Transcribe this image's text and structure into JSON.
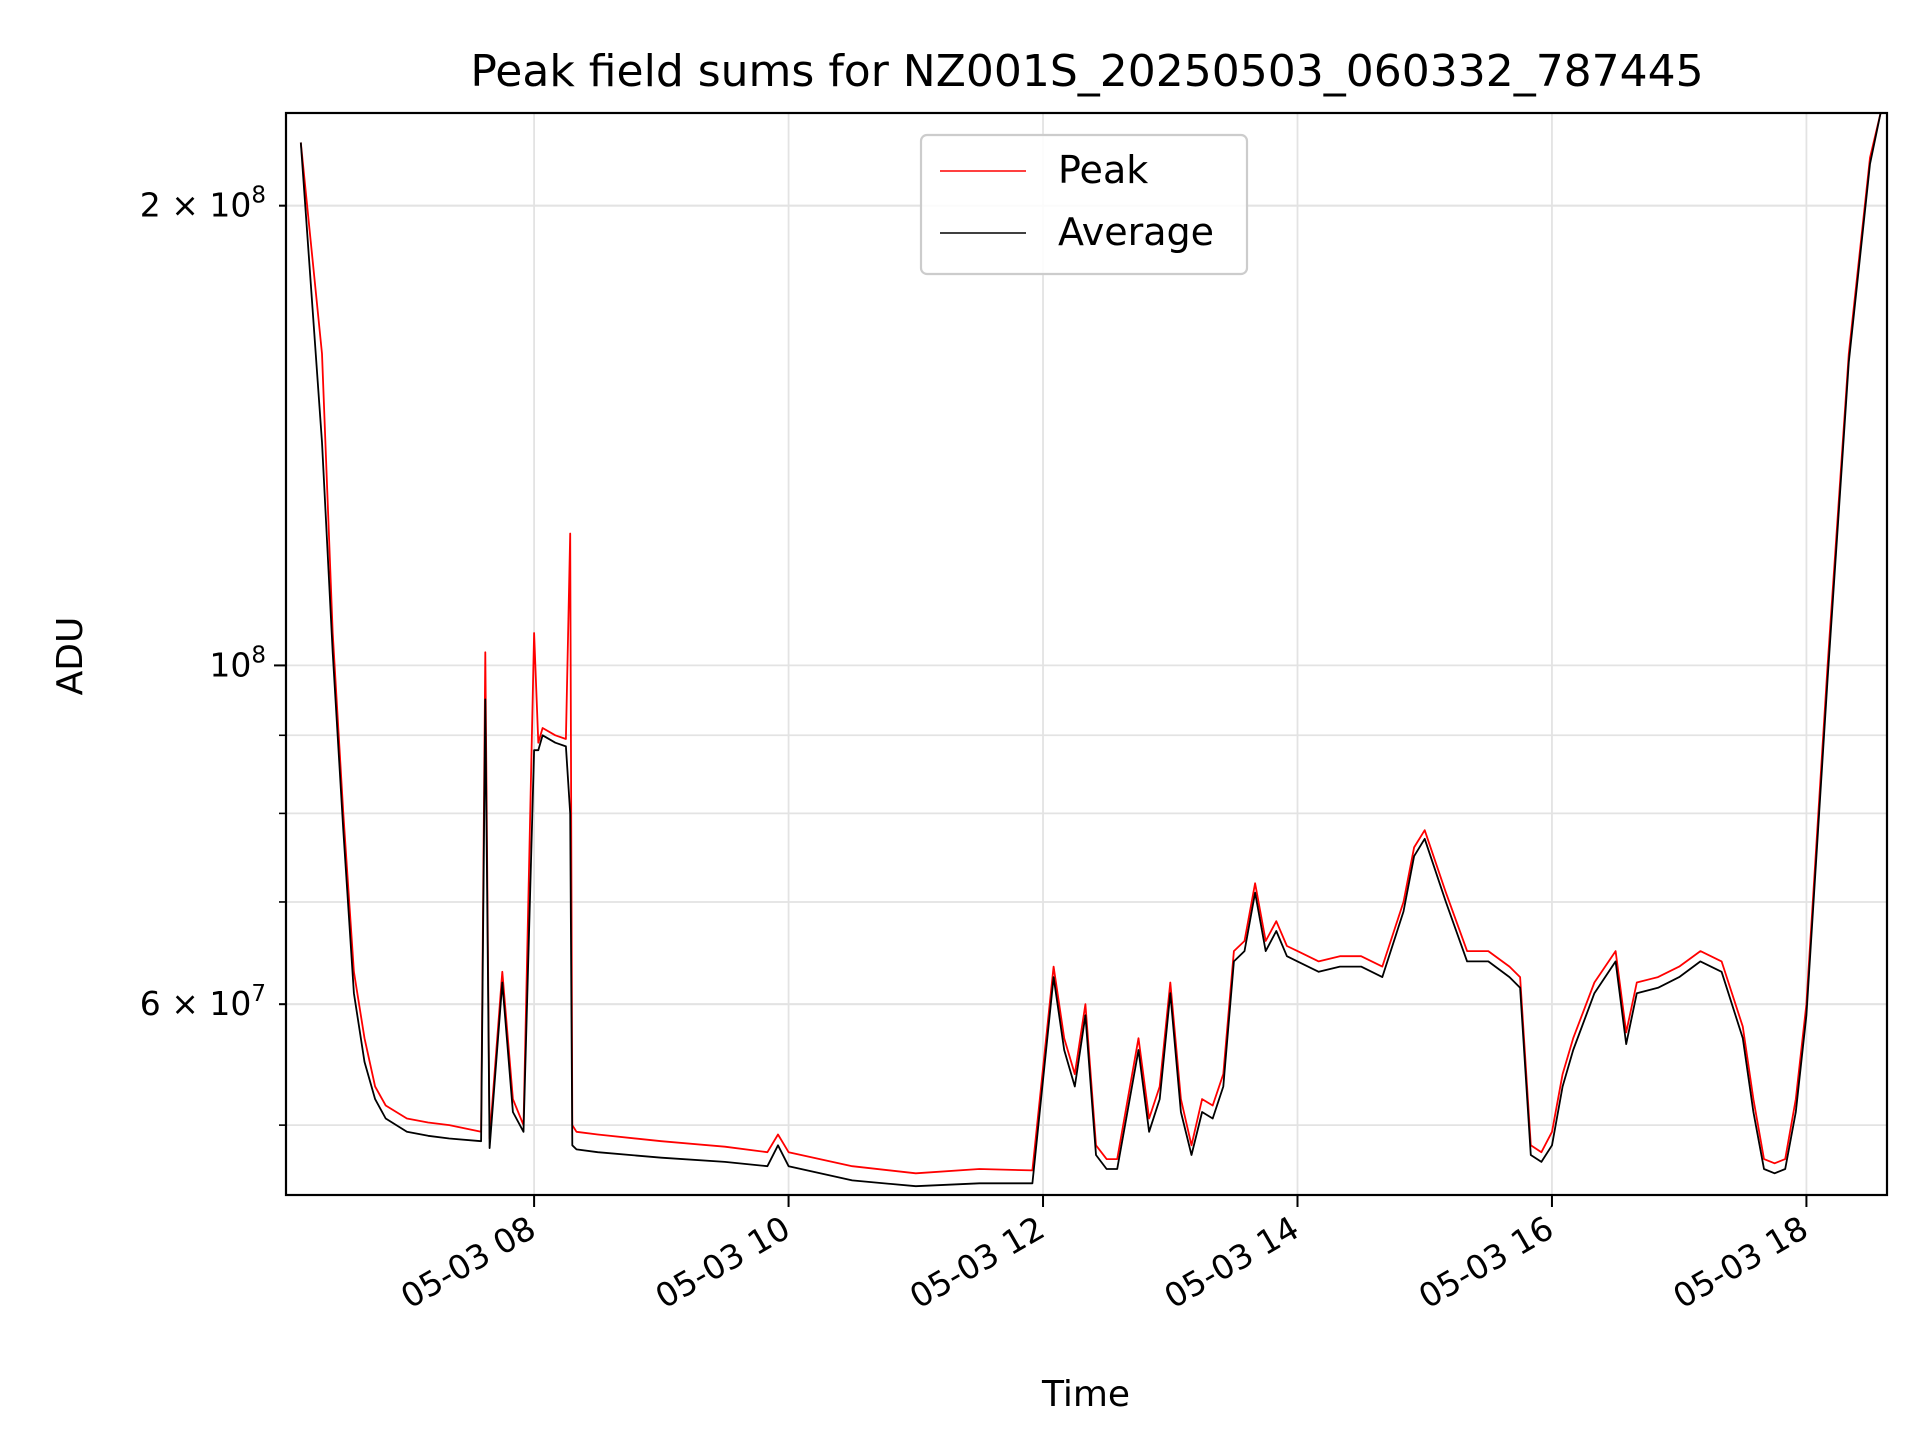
{
  "chart_data": {
    "type": "line",
    "title": "Peak field sums for NZ001S_20250503_060332_787445",
    "xlabel": "Time",
    "ylabel": "ADU",
    "y_scale": "log",
    "grid": true,
    "legend_position": "top-center",
    "xlim": [
      "2025-05-03 06:03",
      "2025-05-03 18:38"
    ],
    "ylim": [
      45000000,
      230000000
    ],
    "x_ticks": [
      "05-03 08",
      "05-03 10",
      "05-03 12",
      "05-03 14",
      "05-03 16",
      "05-03 18"
    ],
    "y_major_ticks": [
      {
        "value": 100000000,
        "label_base": "10",
        "label_exp": "8"
      }
    ],
    "y_minor_labeled_ticks": [
      {
        "value": 200000000,
        "label_base": "2 × 10",
        "label_exp": "8"
      },
      {
        "value": 60000000,
        "label_base": "6 × 10",
        "label_exp": "7"
      }
    ],
    "series": [
      {
        "name": "Peak",
        "color": "#ff0000",
        "x": [
          "2025-05-03 06:10",
          "2025-05-03 06:20",
          "2025-05-03 06:25",
          "2025-05-03 06:30",
          "2025-05-03 06:35",
          "2025-05-03 06:40",
          "2025-05-03 06:45",
          "2025-05-03 06:50",
          "2025-05-03 06:55",
          "2025-05-03 07:00",
          "2025-05-03 07:10",
          "2025-05-03 07:20",
          "2025-05-03 07:35",
          "2025-05-03 07:37",
          "2025-05-03 07:39",
          "2025-05-03 07:45",
          "2025-05-03 07:50",
          "2025-05-03 07:55",
          "2025-05-03 08:00",
          "2025-05-03 08:02",
          "2025-05-03 08:04",
          "2025-05-03 08:10",
          "2025-05-03 08:15",
          "2025-05-03 08:17",
          "2025-05-03 08:18",
          "2025-05-03 08:20",
          "2025-05-03 08:30",
          "2025-05-03 09:00",
          "2025-05-03 09:30",
          "2025-05-03 09:50",
          "2025-05-03 09:55",
          "2025-05-03 10:00",
          "2025-05-03 10:30",
          "2025-05-03 11:00",
          "2025-05-03 11:30",
          "2025-05-03 11:55",
          "2025-05-03 12:05",
          "2025-05-03 12:10",
          "2025-05-03 12:15",
          "2025-05-03 12:20",
          "2025-05-03 12:25",
          "2025-05-03 12:30",
          "2025-05-03 12:35",
          "2025-05-03 12:45",
          "2025-05-03 12:50",
          "2025-05-03 12:55",
          "2025-05-03 13:00",
          "2025-05-03 13:05",
          "2025-05-03 13:10",
          "2025-05-03 13:15",
          "2025-05-03 13:20",
          "2025-05-03 13:25",
          "2025-05-03 13:30",
          "2025-05-03 13:35",
          "2025-05-03 13:40",
          "2025-05-03 13:45",
          "2025-05-03 13:50",
          "2025-05-03 13:55",
          "2025-05-03 14:00",
          "2025-05-03 14:10",
          "2025-05-03 14:20",
          "2025-05-03 14:30",
          "2025-05-03 14:40",
          "2025-05-03 14:50",
          "2025-05-03 14:55",
          "2025-05-03 15:00",
          "2025-05-03 15:10",
          "2025-05-03 15:20",
          "2025-05-03 15:30",
          "2025-05-03 15:40",
          "2025-05-03 15:45",
          "2025-05-03 15:50",
          "2025-05-03 15:55",
          "2025-05-03 16:00",
          "2025-05-03 16:05",
          "2025-05-03 16:10",
          "2025-05-03 16:20",
          "2025-05-03 16:30",
          "2025-05-03 16:35",
          "2025-05-03 16:40",
          "2025-05-03 16:50",
          "2025-05-03 17:00",
          "2025-05-03 17:10",
          "2025-05-03 17:20",
          "2025-05-03 17:30",
          "2025-05-03 17:35",
          "2025-05-03 17:40",
          "2025-05-03 17:45",
          "2025-05-03 17:50",
          "2025-05-03 17:55",
          "2025-05-03 18:00",
          "2025-05-03 18:10",
          "2025-05-03 18:20",
          "2025-05-03 18:30",
          "2025-05-03 18:35"
        ],
        "y": [
          220000000,
          160000000,
          105000000,
          80000000,
          63000000,
          57000000,
          53000000,
          51500000,
          51000000,
          50500000,
          50200000,
          50000000,
          49500000,
          102000000,
          49000000,
          63000000,
          52000000,
          50000000,
          105000000,
          89000000,
          91000000,
          90000000,
          89500000,
          122000000,
          50000000,
          49500000,
          49300000,
          48800000,
          48400000,
          48000000,
          49300000,
          48000000,
          47000000,
          46500000,
          46800000,
          46700000,
          63500000,
          57000000,
          54000000,
          60000000,
          48500000,
          47500000,
          47500000,
          57000000,
          50500000,
          53000000,
          62000000,
          52000000,
          48500000,
          52000000,
          51500000,
          54000000,
          65000000,
          66000000,
          72000000,
          66000000,
          68000000,
          65500000,
          65000000,
          64000000,
          64500000,
          64500000,
          63500000,
          70000000,
          76000000,
          78000000,
          71000000,
          65000000,
          65000000,
          63500000,
          62500000,
          48500000,
          48000000,
          49500000,
          54000000,
          57000000,
          62000000,
          65000000,
          57500000,
          62000000,
          62500000,
          63500000,
          65000000,
          64000000,
          58000000,
          52000000,
          47500000,
          47200000,
          47500000,
          52000000,
          60000000,
          100000000,
          160000000,
          215000000,
          232000000
        ]
      },
      {
        "name": "Average",
        "color": "#000000",
        "x": [
          "2025-05-03 06:10",
          "2025-05-03 06:20",
          "2025-05-03 06:25",
          "2025-05-03 06:30",
          "2025-05-03 06:35",
          "2025-05-03 06:40",
          "2025-05-03 06:45",
          "2025-05-03 06:50",
          "2025-05-03 06:55",
          "2025-05-03 07:00",
          "2025-05-03 07:10",
          "2025-05-03 07:20",
          "2025-05-03 07:35",
          "2025-05-03 07:37",
          "2025-05-03 07:39",
          "2025-05-03 07:45",
          "2025-05-03 07:50",
          "2025-05-03 07:55",
          "2025-05-03 08:00",
          "2025-05-03 08:02",
          "2025-05-03 08:04",
          "2025-05-03 08:10",
          "2025-05-03 08:15",
          "2025-05-03 08:17",
          "2025-05-03 08:18",
          "2025-05-03 08:20",
          "2025-05-03 08:30",
          "2025-05-03 09:00",
          "2025-05-03 09:30",
          "2025-05-03 09:50",
          "2025-05-03 09:55",
          "2025-05-03 10:00",
          "2025-05-03 10:30",
          "2025-05-03 11:00",
          "2025-05-03 11:30",
          "2025-05-03 11:55",
          "2025-05-03 12:05",
          "2025-05-03 12:10",
          "2025-05-03 12:15",
          "2025-05-03 12:20",
          "2025-05-03 12:25",
          "2025-05-03 12:30",
          "2025-05-03 12:35",
          "2025-05-03 12:45",
          "2025-05-03 12:50",
          "2025-05-03 12:55",
          "2025-05-03 13:00",
          "2025-05-03 13:05",
          "2025-05-03 13:10",
          "2025-05-03 13:15",
          "2025-05-03 13:20",
          "2025-05-03 13:25",
          "2025-05-03 13:30",
          "2025-05-03 13:35",
          "2025-05-03 13:40",
          "2025-05-03 13:45",
          "2025-05-03 13:50",
          "2025-05-03 13:55",
          "2025-05-03 14:00",
          "2025-05-03 14:10",
          "2025-05-03 14:20",
          "2025-05-03 14:30",
          "2025-05-03 14:40",
          "2025-05-03 14:50",
          "2025-05-03 14:55",
          "2025-05-03 15:00",
          "2025-05-03 15:10",
          "2025-05-03 15:20",
          "2025-05-03 15:30",
          "2025-05-03 15:40",
          "2025-05-03 15:45",
          "2025-05-03 15:50",
          "2025-05-03 15:55",
          "2025-05-03 16:00",
          "2025-05-03 16:05",
          "2025-05-03 16:10",
          "2025-05-03 16:20",
          "2025-05-03 16:30",
          "2025-05-03 16:35",
          "2025-05-03 16:40",
          "2025-05-03 16:50",
          "2025-05-03 17:00",
          "2025-05-03 17:10",
          "2025-05-03 17:20",
          "2025-05-03 17:30",
          "2025-05-03 17:35",
          "2025-05-03 17:40",
          "2025-05-03 17:45",
          "2025-05-03 17:50",
          "2025-05-03 17:55",
          "2025-05-03 18:00",
          "2025-05-03 18:10",
          "2025-05-03 18:20",
          "2025-05-03 18:30",
          "2025-05-03 18:35"
        ],
        "y": [
          220000000,
          140000000,
          102000000,
          78000000,
          61000000,
          55000000,
          52000000,
          50500000,
          50000000,
          49500000,
          49200000,
          49000000,
          48800000,
          95000000,
          48300000,
          62000000,
          51000000,
          49500000,
          88000000,
          88000000,
          90000000,
          89000000,
          88500000,
          80000000,
          48500000,
          48200000,
          48000000,
          47600000,
          47300000,
          47000000,
          48500000,
          47000000,
          46000000,
          45600000,
          45800000,
          45800000,
          62500000,
          56000000,
          53000000,
          59000000,
          47800000,
          46800000,
          46800000,
          56000000,
          49500000,
          52000000,
          61000000,
          51000000,
          47800000,
          51000000,
          50500000,
          53000000,
          64000000,
          65000000,
          71000000,
          65000000,
          67000000,
          64500000,
          64000000,
          63000000,
          63500000,
          63500000,
          62500000,
          69000000,
          75000000,
          77000000,
          70000000,
          64000000,
          64000000,
          62500000,
          61500000,
          47800000,
          47300000,
          48500000,
          53000000,
          56000000,
          61000000,
          64000000,
          56500000,
          61000000,
          61500000,
          62500000,
          64000000,
          63000000,
          57000000,
          51000000,
          46800000,
          46500000,
          46800000,
          51000000,
          59000000,
          98000000,
          158000000,
          213000000,
          232000000
        ]
      }
    ]
  }
}
